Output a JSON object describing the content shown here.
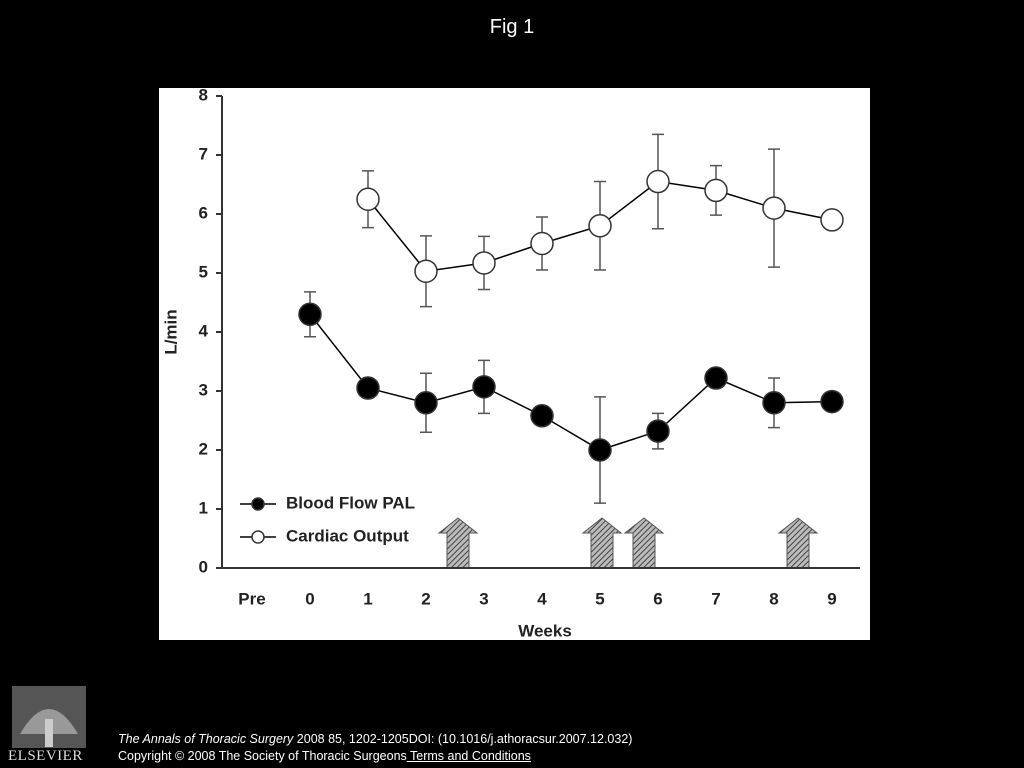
{
  "header": {
    "title": "Fig 1"
  },
  "chart_data": {
    "type": "line",
    "x_label": "Weeks",
    "y_label": "L/min",
    "categories": [
      "Pre",
      "0",
      "1",
      "2",
      "3",
      "4",
      "5",
      "6",
      "7",
      "8",
      "9"
    ],
    "series": [
      {
        "name": "Blood Flow PAL",
        "color": "#000000",
        "marker_fill": "#000000",
        "values": [
          null,
          4.3,
          3.05,
          2.8,
          3.07,
          2.58,
          2.0,
          2.32,
          3.22,
          2.8,
          2.82
        ],
        "errors": [
          null,
          0.38,
          null,
          0.5,
          0.45,
          null,
          0.9,
          0.3,
          null,
          0.42,
          null
        ]
      },
      {
        "name": "Cardiac Output",
        "color": "#000000",
        "marker_fill": "#ffffff",
        "values": [
          null,
          null,
          6.25,
          5.03,
          5.17,
          5.5,
          5.8,
          6.55,
          6.4,
          6.1,
          5.9
        ],
        "errors": [
          null,
          null,
          0.48,
          0.6,
          0.45,
          0.45,
          0.75,
          0.8,
          0.42,
          1.0,
          null
        ]
      }
    ],
    "ylim": [
      0,
      8
    ],
    "yticks": [
      0,
      1,
      2,
      3,
      4,
      5,
      6,
      7,
      8
    ],
    "grid": false,
    "legend": "lower left"
  },
  "footer": {
    "logo": "ELSEVIER",
    "journal": "The Annals of Thoracic Surgery",
    "citation": " 2008 85, 1202-1205DOI: (10.1016/j.athoracsur.2007.12.032)",
    "copyright": "Copyright © 2008 The Society of Thoracic Surgeons",
    "link": " Terms and Conditions"
  }
}
